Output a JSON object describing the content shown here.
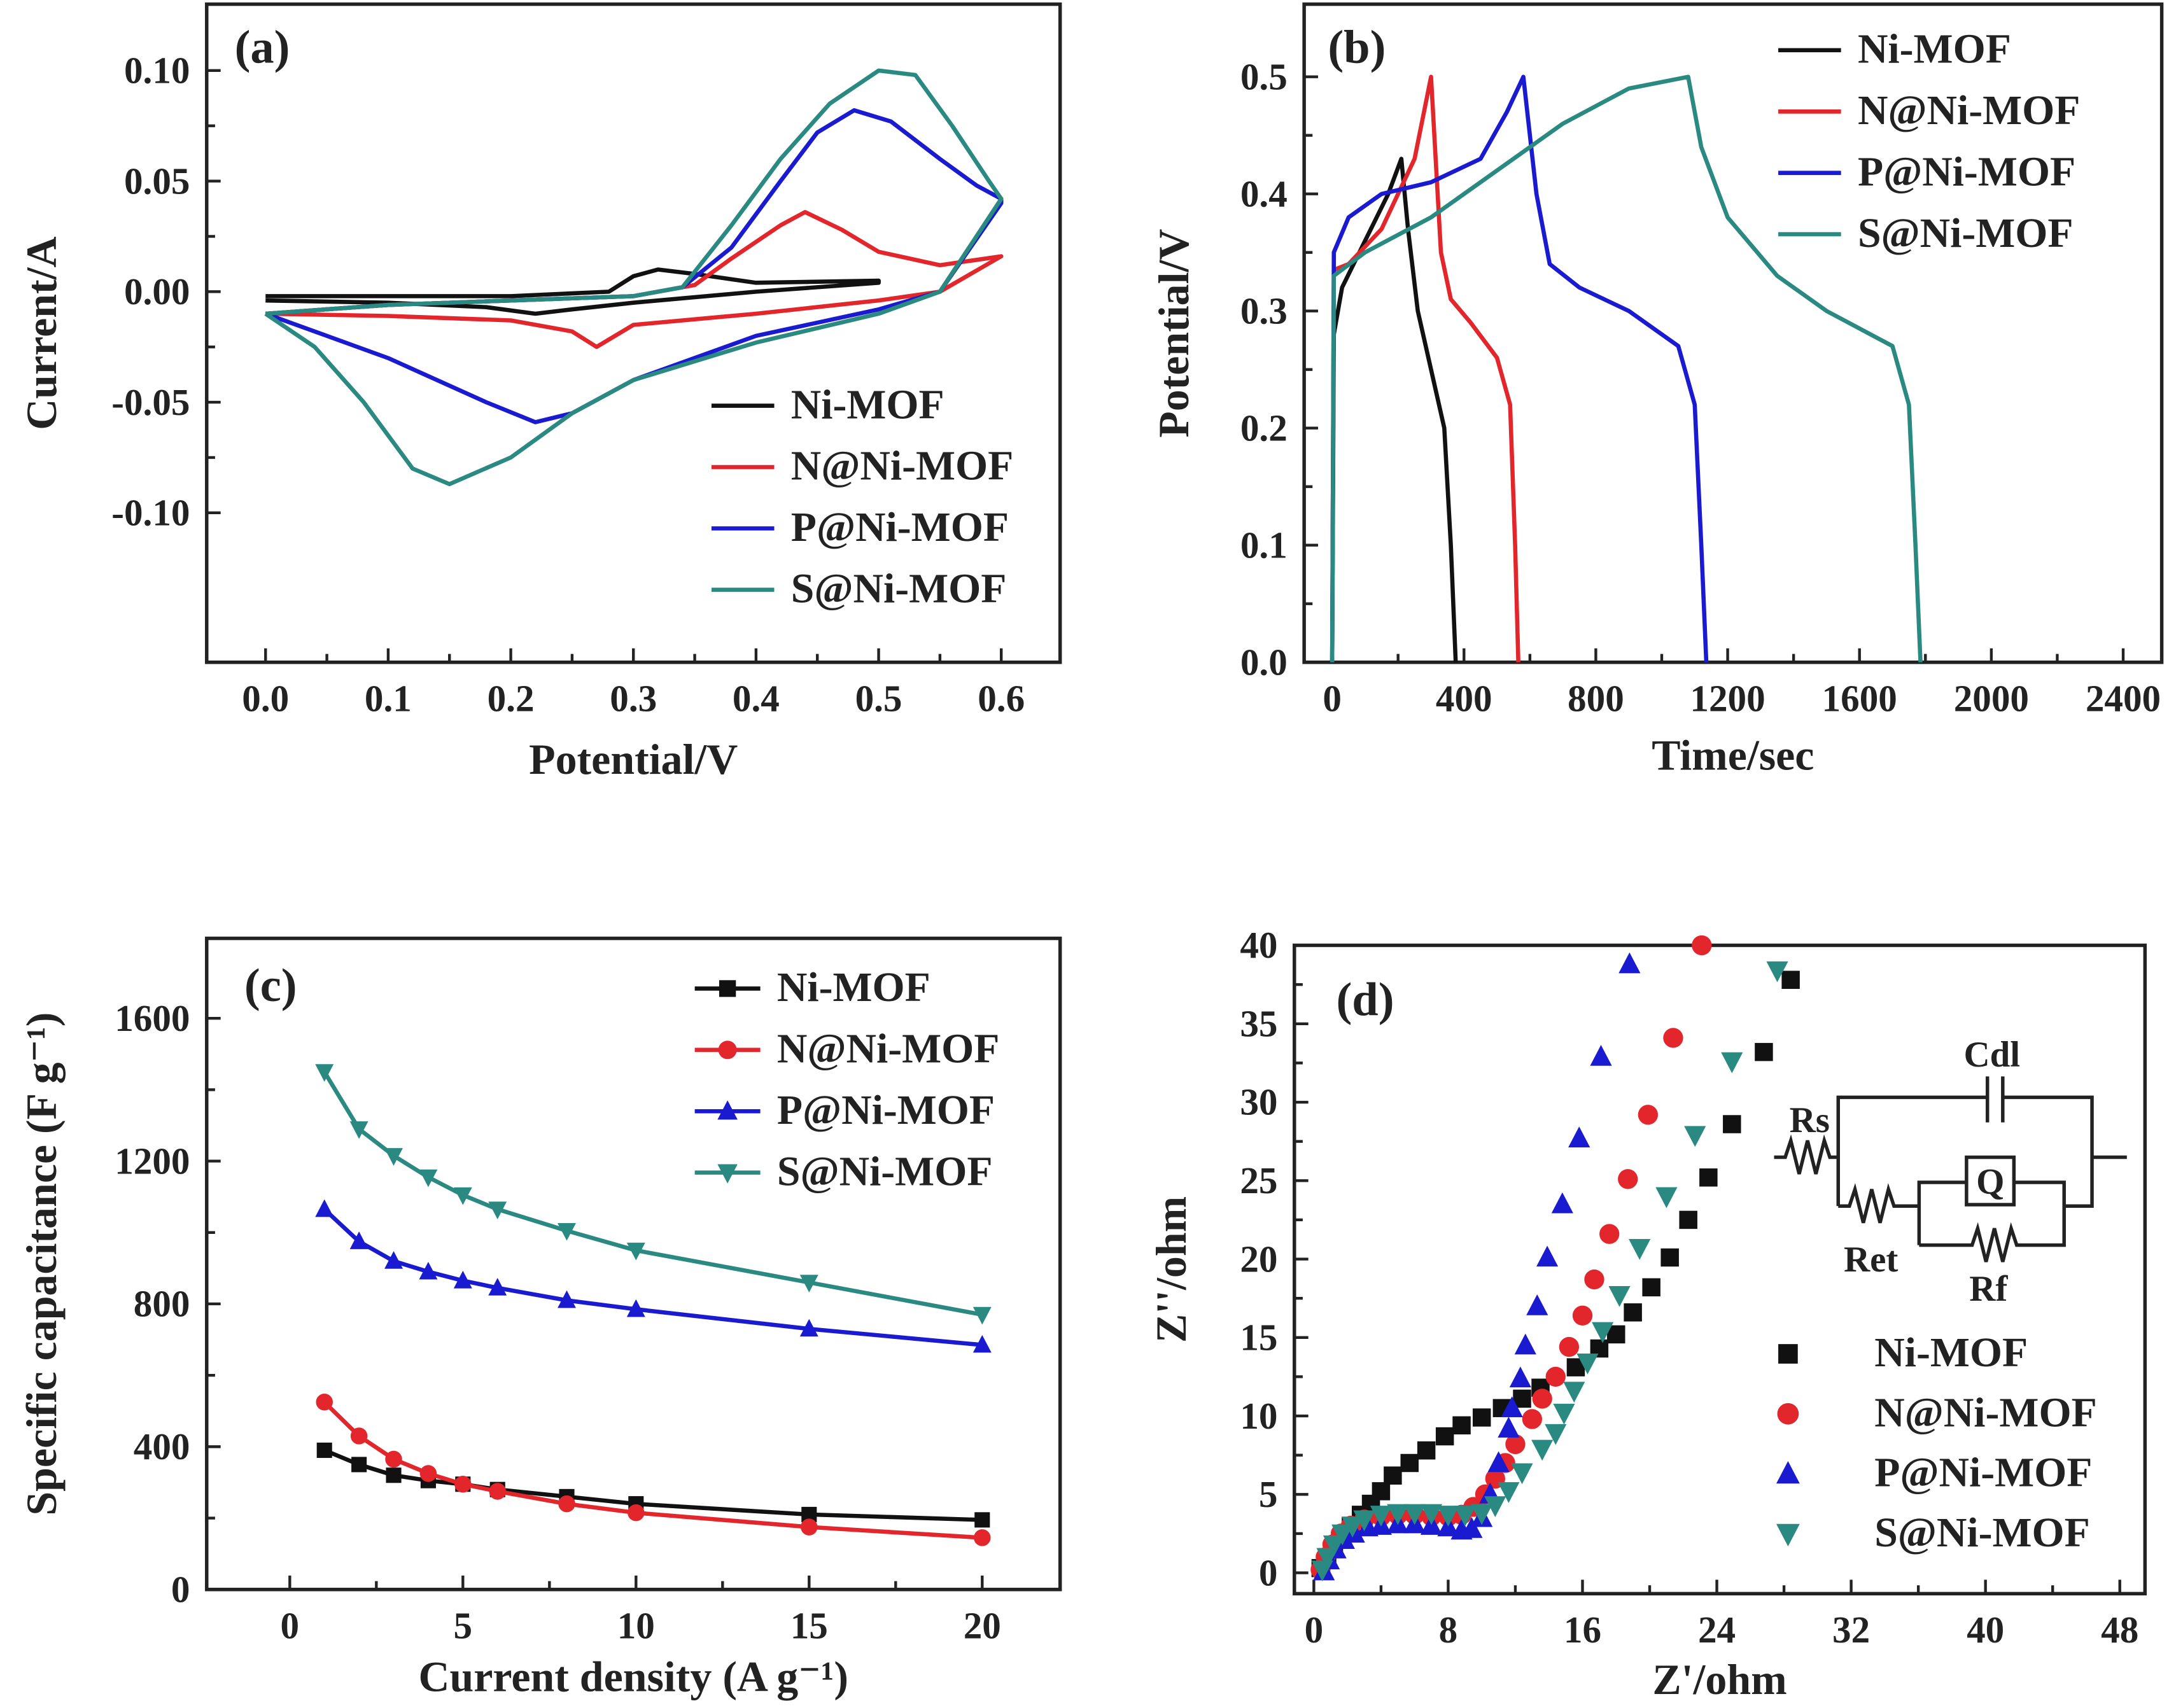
{
  "colors": {
    "Ni-MOF": "#111111",
    "N@Ni-MOF": "#e3262b",
    "P@Ni-MOF": "#1a1ad0",
    "S@Ni-MOF": "#2a8a82"
  },
  "chart_data": [
    {
      "panel": "(a)",
      "type": "line",
      "xlabel": "Potential/V",
      "ylabel": "Current/A",
      "xlim": [
        -0.048,
        0.648
      ],
      "ylim": [
        -0.1676,
        0.13
      ],
      "xticks": [
        0.0,
        0.1,
        0.2,
        0.3,
        0.4,
        0.5,
        0.6
      ],
      "xtick_labels": [
        "0.0",
        "0.1",
        "0.2",
        "0.3",
        "0.4",
        "0.5",
        "0.6"
      ],
      "yticks": [
        0.1,
        0.05,
        0.0,
        -0.05,
        -0.1
      ],
      "ytick_labels": [
        "0.10",
        "0.05",
        "0.00",
        "-0.05",
        "-0.10"
      ],
      "legend_position": "bottom-right",
      "series": [
        {
          "name": "Ni-MOF",
          "x": [
            0,
            0.2,
            0.28,
            0.3,
            0.32,
            0.35,
            0.4,
            0.5,
            0.5,
            0.4,
            0.3,
            0.25,
            0.22,
            0.18,
            0.1,
            0
          ],
          "y": [
            -0.002,
            -0.002,
            0.0,
            0.007,
            0.01,
            0.008,
            0.004,
            0.005,
            0.004,
            0.0,
            -0.005,
            -0.008,
            -0.01,
            -0.007,
            -0.005,
            -0.004
          ]
        },
        {
          "name": "N@Ni-MOF",
          "x": [
            0,
            0.1,
            0.2,
            0.3,
            0.35,
            0.38,
            0.42,
            0.44,
            0.47,
            0.5,
            0.55,
            0.6,
            0.55,
            0.5,
            0.4,
            0.3,
            0.27,
            0.25,
            0.2,
            0.1,
            0
          ],
          "y": [
            -0.01,
            -0.006,
            -0.004,
            -0.002,
            0.003,
            0.015,
            0.03,
            0.036,
            0.028,
            0.018,
            0.012,
            0.016,
            0.0,
            -0.004,
            -0.01,
            -0.015,
            -0.025,
            -0.018,
            -0.013,
            -0.011,
            -0.01
          ]
        },
        {
          "name": "P@Ni-MOF",
          "x": [
            0,
            0.1,
            0.2,
            0.3,
            0.34,
            0.38,
            0.42,
            0.45,
            0.48,
            0.51,
            0.55,
            0.58,
            0.6,
            0.6,
            0.55,
            0.5,
            0.4,
            0.3,
            0.25,
            0.22,
            0.18,
            0.1,
            0.05,
            0
          ],
          "y": [
            -0.01,
            -0.006,
            -0.004,
            -0.002,
            0.002,
            0.02,
            0.05,
            0.072,
            0.082,
            0.077,
            0.06,
            0.048,
            0.042,
            0.04,
            0.0,
            -0.008,
            -0.02,
            -0.04,
            -0.055,
            -0.059,
            -0.05,
            -0.03,
            -0.02,
            -0.01
          ]
        },
        {
          "name": "S@Ni-MOF",
          "x": [
            0,
            0.1,
            0.2,
            0.3,
            0.34,
            0.38,
            0.42,
            0.46,
            0.5,
            0.53,
            0.56,
            0.59,
            0.6,
            0.55,
            0.5,
            0.4,
            0.3,
            0.25,
            0.2,
            0.15,
            0.12,
            0.08,
            0.04,
            0
          ],
          "y": [
            -0.01,
            -0.006,
            -0.004,
            -0.002,
            0.002,
            0.03,
            0.06,
            0.085,
            0.1,
            0.098,
            0.075,
            0.05,
            0.042,
            0.0,
            -0.01,
            -0.023,
            -0.04,
            -0.055,
            -0.075,
            -0.087,
            -0.08,
            -0.05,
            -0.025,
            -0.01
          ]
        }
      ]
    },
    {
      "panel": "(b)",
      "type": "line",
      "xlabel": "Time/sec",
      "ylabel": "Potential/V",
      "xlim": [
        -85,
        2517
      ],
      "ylim": [
        0,
        0.562
      ],
      "xticks": [
        0,
        400,
        800,
        1200,
        1600,
        2000,
        2400
      ],
      "xtick_labels": [
        "0",
        "400",
        "800",
        "1200",
        "1600",
        "2000",
        "2400"
      ],
      "yticks": [
        0.0,
        0.1,
        0.2,
        0.3,
        0.4,
        0.5
      ],
      "ytick_labels": [
        "0.0",
        "0.1",
        "0.2",
        "0.3",
        "0.4",
        "0.5"
      ],
      "legend_position": "top-right",
      "series": [
        {
          "name": "Ni-MOF",
          "x": [
            0,
            5,
            30,
            100,
            170,
            210,
            230,
            260,
            300,
            340,
            360,
            375
          ],
          "y": [
            0,
            0.28,
            0.32,
            0.36,
            0.4,
            0.43,
            0.37,
            0.3,
            0.25,
            0.2,
            0.1,
            0
          ]
        },
        {
          "name": "N@Ni-MOF",
          "x": [
            0,
            5,
            50,
            150,
            250,
            300,
            330,
            360,
            420,
            500,
            540,
            555,
            565
          ],
          "y": [
            0,
            0.335,
            0.34,
            0.37,
            0.43,
            0.5,
            0.35,
            0.31,
            0.29,
            0.26,
            0.22,
            0.1,
            0
          ]
        },
        {
          "name": "P@Ni-MOF",
          "x": [
            0,
            5,
            50,
            150,
            300,
            450,
            530,
            580,
            620,
            660,
            750,
            900,
            1050,
            1100,
            1120,
            1135
          ],
          "y": [
            0,
            0.35,
            0.38,
            0.4,
            0.41,
            0.43,
            0.47,
            0.5,
            0.4,
            0.34,
            0.32,
            0.3,
            0.27,
            0.22,
            0.1,
            0
          ]
        },
        {
          "name": "S@Ni-MOF",
          "x": [
            0,
            5,
            100,
            300,
            500,
            700,
            900,
            1080,
            1120,
            1200,
            1350,
            1500,
            1700,
            1750,
            1770,
            1785
          ],
          "y": [
            0,
            0.33,
            0.35,
            0.38,
            0.42,
            0.46,
            0.49,
            0.5,
            0.44,
            0.38,
            0.33,
            0.3,
            0.27,
            0.22,
            0.1,
            0
          ]
        }
      ]
    },
    {
      "panel": "(c)",
      "type": "line",
      "xlabel": "Current density (A g⁻¹)",
      "ylabel": "Specific capacitance (F g⁻¹)",
      "xlim": [
        -2.4,
        22.25
      ],
      "ylim": [
        0,
        1824
      ],
      "xticks": [
        0,
        5,
        10,
        15,
        20
      ],
      "xtick_labels": [
        "0",
        "5",
        "10",
        "15",
        "20"
      ],
      "yticks": [
        0,
        400,
        800,
        1200,
        1600
      ],
      "ytick_labels": [
        "0",
        "400",
        "800",
        "1200",
        "1600"
      ],
      "legend_position": "top-right",
      "x": [
        1,
        2,
        3,
        4,
        5,
        6,
        8,
        10,
        15,
        20
      ],
      "series": [
        {
          "name": "Ni-MOF",
          "marker": "square",
          "values": [
            390,
            350,
            320,
            305,
            295,
            280,
            260,
            240,
            210,
            195
          ]
        },
        {
          "name": "N@Ni-MOF",
          "marker": "circle",
          "values": [
            525,
            430,
            365,
            325,
            295,
            275,
            240,
            215,
            175,
            145
          ]
        },
        {
          "name": "P@Ni-MOF",
          "marker": "triangle-up",
          "values": [
            1065,
            975,
            920,
            890,
            865,
            845,
            810,
            785,
            730,
            685
          ]
        },
        {
          "name": "S@Ni-MOF",
          "marker": "triangle-down",
          "values": [
            1450,
            1290,
            1215,
            1155,
            1105,
            1065,
            1005,
            950,
            860,
            770
          ]
        }
      ]
    },
    {
      "panel": "(d)",
      "type": "scatter",
      "xlabel": "Z'/ohm",
      "ylabel": "Z''/ohm",
      "xlim": [
        -1.16,
        49.5
      ],
      "ylim": [
        -1.33,
        40
      ],
      "xticks": [
        0,
        8,
        16,
        24,
        32,
        40,
        48
      ],
      "xtick_labels": [
        "0",
        "8",
        "16",
        "24",
        "32",
        "40",
        "48"
      ],
      "yticks": [
        0,
        5,
        10,
        15,
        20,
        25,
        30,
        35,
        40
      ],
      "ytick_labels": [
        "0",
        "5",
        "10",
        "15",
        "20",
        "25",
        "30",
        "35",
        "40"
      ],
      "legend_position": "bottom-right",
      "circuit_labels": {
        "rs": "Rs",
        "cdl": "Cdl",
        "q": "Q",
        "ret": "Ret",
        "rf": "Rf"
      },
      "series": [
        {
          "name": "Ni-MOF",
          "marker": "square",
          "x": [
            0.4,
            0.8,
            1.2,
            1.7,
            2.2,
            2.8,
            3.4,
            4,
            4.7,
            5.7,
            6.7,
            7.8,
            8.8,
            10,
            11.2,
            12.4,
            13.5,
            15.6,
            17,
            18,
            19,
            20.1,
            21.2,
            22.3,
            23.5,
            24.9,
            26.8,
            28.4
          ],
          "y": [
            0.3,
            1,
            1.7,
            2.4,
            3,
            3.7,
            4.4,
            5.2,
            6.2,
            7,
            7.8,
            8.7,
            9.4,
            9.9,
            10.5,
            11.1,
            11.8,
            13.1,
            14.3,
            15.2,
            16.6,
            18.2,
            20.1,
            22.5,
            25.2,
            28.6,
            33.2,
            37.8
          ]
        },
        {
          "name": "N@Ni-MOF",
          "marker": "circle",
          "x": [
            0.4,
            0.7,
            1.1,
            1.6,
            2.2,
            3,
            4,
            5,
            6,
            7,
            8,
            8.8,
            9.5,
            10.2,
            10.8,
            11.4,
            12,
            13,
            13.6,
            14.4,
            15.2,
            16,
            16.7,
            17.6,
            18.7,
            19.9,
            21.4,
            23.1
          ],
          "y": [
            0.2,
            1,
            1.8,
            2.5,
            3,
            3.4,
            3.6,
            3.7,
            3.7,
            3.6,
            3.6,
            3.7,
            4.2,
            5,
            6,
            7,
            8.2,
            9.8,
            11.1,
            12.5,
            14.4,
            16.4,
            18.7,
            21.6,
            25.1,
            29.2,
            34.1,
            40
          ]
        },
        {
          "name": "P@Ni-MOF",
          "marker": "triangle-up",
          "x": [
            0.6,
            0.9,
            1.3,
            1.8,
            2.4,
            3.2,
            4,
            5,
            6,
            7,
            8,
            8.8,
            9.4,
            10,
            10.5,
            11,
            11.6,
            11.8,
            12.3,
            12.6,
            13.3,
            13.9,
            14.8,
            15.8,
            17.1,
            18.8
          ],
          "y": [
            0.1,
            0.8,
            1.5,
            2.1,
            2.5,
            2.9,
            3,
            3.1,
            3.1,
            3,
            2.9,
            2.7,
            2.8,
            3.5,
            5,
            7,
            9.2,
            10.5,
            12.4,
            14.5,
            17,
            20.1,
            23.5,
            27.7,
            32.9,
            38.8
          ]
        },
        {
          "name": "S@Ni-MOF",
          "marker": "triangle-down",
          "x": [
            0.5,
            0.8,
            1.2,
            1.7,
            2.3,
            3,
            4,
            5,
            6,
            7,
            8,
            9,
            10,
            10.8,
            11.6,
            12.4,
            13.6,
            14.4,
            14.9,
            15.5,
            16.3,
            17.2,
            18.2,
            19.4,
            21,
            22.7,
            24.9,
            27.6
          ],
          "y": [
            0.2,
            1,
            1.8,
            2.5,
            3,
            3.4,
            3.7,
            3.8,
            3.8,
            3.8,
            3.7,
            3.7,
            3.8,
            4.3,
            5.2,
            6.4,
            7.9,
            8.9,
            10.2,
            11.6,
            13.4,
            15.4,
            17.7,
            20.7,
            24,
            27.9,
            32.6,
            38.4
          ]
        }
      ]
    }
  ]
}
